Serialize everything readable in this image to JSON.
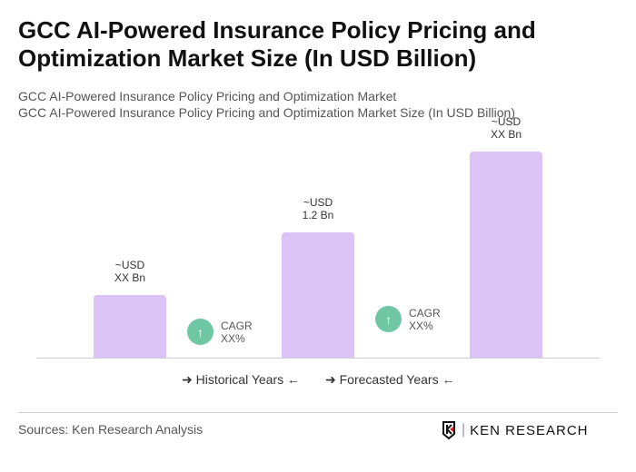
{
  "title": "GCC AI-Powered Insurance Policy Pricing and Optimization Market Size (In USD Billion)",
  "subtitle1": "GCC AI-Powered Insurance Policy Pricing and Optimization Market",
  "subtitle2": "GCC AI-Powered Insurance Policy Pricing and Optimization Market Size (In USD Billion)",
  "chart_data": {
    "type": "bar",
    "categories": [
      "",
      "",
      ""
    ],
    "values": [
      0.6,
      1.2,
      1.97
    ],
    "data_labels": [
      [
        "~USD",
        "XX Bn"
      ],
      [
        "~USD",
        "1.2 Bn"
      ],
      [
        "~USD",
        "XX Bn"
      ]
    ],
    "bar_color": "#dcc3f6",
    "cagr": [
      {
        "label": "CAGR",
        "value": "XX%"
      },
      {
        "label": "CAGR",
        "value": "XX%"
      }
    ],
    "cagr_color": "#6fc7a3",
    "legend": [
      "Historical Years",
      "Forecasted Years"
    ]
  },
  "sources": "Sources: Ken Research Analysis",
  "logo_text": "KEN RESEARCH"
}
